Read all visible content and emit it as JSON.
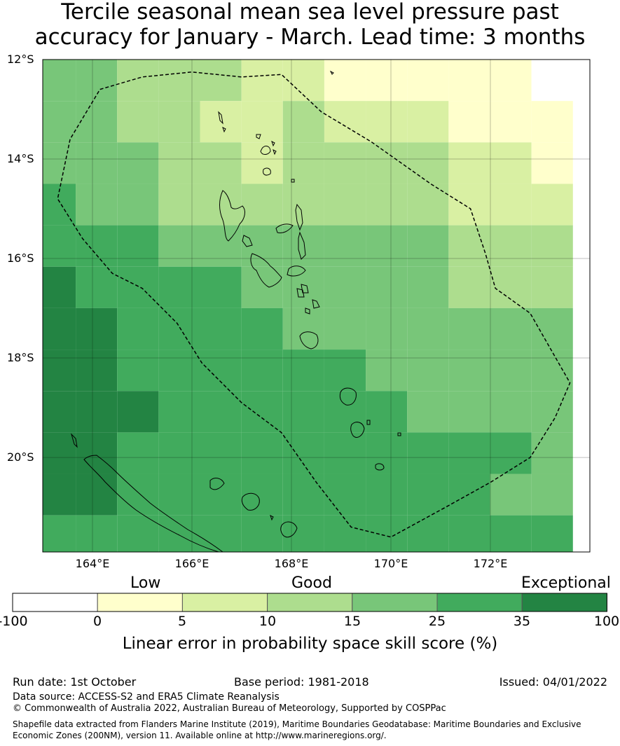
{
  "title": {
    "line1": "Tercile seasonal mean sea level pressure past",
    "line2": "accuracy for January - March. Lead time: 3 months"
  },
  "map": {
    "lat_labels": [
      "12°S",
      "14°S",
      "16°S",
      "18°S",
      "20°S"
    ],
    "lon_labels": [
      "164°E",
      "166°E",
      "168°E",
      "170°E",
      "172°E"
    ],
    "extent": {
      "lon_min": 163.0,
      "lon_max": 174.0,
      "lat_min": -21.9,
      "lat_max": -12.0
    },
    "grid_step_deg": 0.833,
    "skill_grid": {
      "rows": 12,
      "cols": 13,
      "values": [
        [
          4,
          4,
          3,
          3,
          3,
          2,
          2,
          1,
          1,
          1,
          1,
          1,
          0
        ],
        [
          4,
          4,
          3,
          3,
          2,
          2,
          3,
          2,
          2,
          2,
          1,
          1,
          1
        ],
        [
          4,
          4,
          4,
          3,
          3,
          2,
          3,
          3,
          3,
          3,
          2,
          2,
          1
        ],
        [
          5,
          4,
          4,
          3,
          3,
          3,
          3,
          3,
          3,
          3,
          2,
          2,
          2
        ],
        [
          5,
          5,
          5,
          4,
          4,
          4,
          4,
          4,
          4,
          4,
          3,
          3,
          3
        ],
        [
          6,
          5,
          5,
          5,
          5,
          4,
          4,
          4,
          4,
          4,
          3,
          3,
          3
        ],
        [
          6,
          6,
          5,
          5,
          5,
          5,
          4,
          4,
          4,
          4,
          4,
          4,
          4
        ],
        [
          6,
          6,
          5,
          5,
          5,
          5,
          5,
          5,
          4,
          4,
          4,
          4,
          4
        ],
        [
          6,
          6,
          6,
          5,
          5,
          5,
          5,
          5,
          5,
          4,
          4,
          4,
          4
        ],
        [
          6,
          6,
          5,
          5,
          5,
          5,
          5,
          5,
          5,
          5,
          5,
          5,
          4
        ],
        [
          6,
          6,
          5,
          5,
          5,
          5,
          5,
          5,
          5,
          5,
          5,
          4,
          4
        ],
        [
          5,
          5,
          5,
          5,
          5,
          5,
          5,
          5,
          5,
          5,
          5,
          5,
          5
        ]
      ]
    },
    "eez_boundary_lonlat": [
      [
        164.15,
        -12.6
      ],
      [
        165.0,
        -12.35
      ],
      [
        166.0,
        -12.25
      ],
      [
        167.0,
        -12.35
      ],
      [
        167.8,
        -12.3
      ],
      [
        168.6,
        -13.05
      ],
      [
        169.6,
        -13.65
      ],
      [
        170.8,
        -14.5
      ],
      [
        171.6,
        -15.0
      ],
      [
        171.9,
        -15.9
      ],
      [
        172.1,
        -16.6
      ],
      [
        172.8,
        -17.1
      ],
      [
        173.2,
        -17.8
      ],
      [
        173.6,
        -18.5
      ],
      [
        173.3,
        -19.2
      ],
      [
        172.8,
        -20.0
      ],
      [
        172.0,
        -20.5
      ],
      [
        171.1,
        -21.0
      ],
      [
        170.0,
        -21.6
      ],
      [
        169.2,
        -21.4
      ],
      [
        168.5,
        -20.5
      ],
      [
        167.8,
        -19.5
      ],
      [
        167.0,
        -18.9
      ],
      [
        166.2,
        -18.1
      ],
      [
        165.7,
        -17.3
      ],
      [
        165.0,
        -16.6
      ],
      [
        164.4,
        -16.3
      ],
      [
        163.8,
        -15.6
      ],
      [
        163.3,
        -14.8
      ],
      [
        163.55,
        -13.6
      ],
      [
        164.15,
        -12.6
      ]
    ],
    "colors": {
      "band_0": "#ffffff",
      "band_1": "#ffffcc",
      "band_2": "#d9f0a3",
      "band_3": "#addd8e",
      "band_4": "#78c679",
      "band_5": "#41ab5d",
      "band_6": "#238443"
    }
  },
  "colorbar": {
    "categories": [
      "Low",
      "Good",
      "Exceptional"
    ],
    "ticks": [
      "-100",
      "0",
      "5",
      "10",
      "15",
      "25",
      "35",
      "100"
    ],
    "colors": [
      "#ffffff",
      "#ffffcc",
      "#d9f0a3",
      "#addd8e",
      "#78c679",
      "#41ab5d",
      "#238443"
    ],
    "title": "Linear error in probability space skill score (%)"
  },
  "footer": {
    "run_date": "Run date: 1st October",
    "base_period": "Base period: 1981-2018",
    "issued": "Issued: 04/01/2022",
    "data_source": "Data source: ACCESS-S2 and ERA5 Climate Reanalysis",
    "copyright": "© Commonwealth of Australia 2022, Australian Bureau of Meteorology, Supported by COSPPac",
    "shapefile_line1": "Shapefile data extracted from Flanders Marine Institute (2019), Maritime Boundaries Geodatabase: Maritime Boundaries and Exclusive",
    "shapefile_line2": "Economic Zones (200NM), version 11. Available online at http://www.marineregions.org/."
  }
}
